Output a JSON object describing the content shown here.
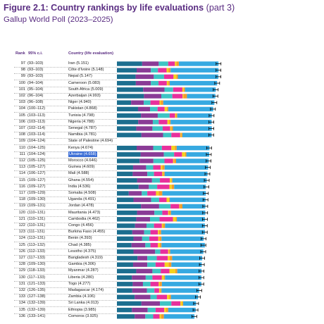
{
  "title": "Figure 2.1: Country rankings by life evaluations",
  "title_part": "(part 3)",
  "subtitle": "Gallup World Poll (2023–2025)",
  "headers": {
    "rank": "Rank",
    "ci": "95% c.i.",
    "country": "Country (life evaluation)"
  },
  "component_colors": {
    "gdp": "#1c6e8f",
    "social_support": "#8a3b96",
    "life_expectancy": "#3ec4c4",
    "freedom": "#e8309c",
    "generosity": "#f5d21c",
    "corruption": "#f39a2a",
    "dystopia_residual": "#36a9e1",
    "ci_whisker": "#000000"
  },
  "chart_data": {
    "type": "bar",
    "stacked": true,
    "orientation": "horizontal",
    "segments": [
      "gdp",
      "social_support",
      "life_expectancy",
      "freedom",
      "generosity",
      "corruption",
      "dystopia_residual"
    ],
    "rows": [
      {
        "rank": "97",
        "ci": "(93–103)",
        "country": "Iran (5.151)",
        "score": 5.151,
        "s": [
          1.28,
          0.84,
          0.48,
          0.34,
          0.08,
          0.12,
          2.01
        ]
      },
      {
        "rank": "98",
        "ci": "(93–103)",
        "country": "Côte d'Ivoire (5.148)",
        "score": 5.148,
        "s": [
          1.0,
          0.72,
          0.36,
          0.44,
          0.09,
          0.11,
          2.43
        ]
      },
      {
        "rank": "99",
        "ci": "(93–103)",
        "country": "Nepal (5.147)",
        "score": 5.147,
        "s": [
          0.95,
          0.92,
          0.52,
          0.48,
          0.14,
          0.08,
          2.05
        ]
      },
      {
        "rank": "100",
        "ci": "(94–104)",
        "country": "Cameroon (5.083)",
        "score": 5.083,
        "s": [
          0.96,
          0.76,
          0.39,
          0.42,
          0.08,
          0.07,
          2.4
        ]
      },
      {
        "rank": "101",
        "ci": "(95–104)",
        "country": "South Africa (5.009)",
        "score": 5.009,
        "s": [
          1.33,
          1.08,
          0.44,
          0.47,
          0.07,
          0.06,
          1.56
        ]
      },
      {
        "rank": "102",
        "ci": "(96–104)",
        "country": "Azerbaijan (4.993)",
        "score": 4.993,
        "s": [
          1.37,
          0.88,
          0.56,
          0.52,
          0.04,
          0.18,
          1.44
        ]
      },
      {
        "rank": "103",
        "ci": "(96–108)",
        "country": "Niger (4.940)",
        "score": 4.94,
        "s": [
          0.72,
          0.64,
          0.34,
          0.46,
          0.07,
          0.12,
          2.59
        ]
      },
      {
        "rank": "104",
        "ci": "(100–112)",
        "country": "Pakistan (4.868)",
        "score": 4.868,
        "s": [
          1.07,
          0.61,
          0.38,
          0.36,
          0.11,
          0.07,
          2.28
        ]
      },
      {
        "rank": "105",
        "ci": "(103–113)",
        "country": "Tunisia (4.798)",
        "score": 4.798,
        "s": [
          1.22,
          0.85,
          0.6,
          0.28,
          0.05,
          0.06,
          1.75
        ]
      },
      {
        "rank": "106",
        "ci": "(103–113)",
        "country": "Nigeria (4.788)",
        "score": 4.788,
        "s": [
          1.08,
          0.74,
          0.3,
          0.44,
          0.1,
          0.06,
          2.08
        ]
      },
      {
        "rank": "107",
        "ci": "(102–114)",
        "country": "Senegal (4.787)",
        "score": 4.787,
        "s": [
          0.98,
          0.82,
          0.52,
          0.38,
          0.06,
          0.08,
          1.97
        ]
      },
      {
        "rank": "108",
        "ci": "(103–114)",
        "country": "Namibia (4.781)",
        "score": 4.781,
        "s": [
          1.24,
          1.1,
          0.42,
          0.45,
          0.05,
          0.06,
          1.48
        ]
      },
      {
        "rank": "109",
        "ci": "(104–124)",
        "country": "State of Palestine (4.694)",
        "score": 4.694,
        "s": [],
        "no_bar": true
      },
      {
        "rank": "110",
        "ci": "(104–125)",
        "country": "Kenya (4.674)",
        "score": 4.674,
        "s": [
          1.0,
          0.84,
          0.44,
          0.48,
          0.18,
          0.09,
          1.66
        ]
      },
      {
        "rank": "111",
        "ci": "(104–124)",
        "country": "Ukraine (4.658)",
        "score": 4.658,
        "s": [
          1.2,
          1.18,
          0.52,
          0.4,
          0.16,
          0.06,
          1.16
        ],
        "highlight": true
      },
      {
        "rank": "112",
        "ci": "(105–125)",
        "country": "Morocco (4.646)",
        "score": 4.646,
        "s": [
          1.15,
          0.7,
          0.56,
          0.44,
          0.05,
          0.1,
          1.65
        ]
      },
      {
        "rank": "113",
        "ci": "(105–127)",
        "country": "Guinea (4.609)",
        "score": 4.609,
        "s": [
          0.82,
          0.66,
          0.36,
          0.38,
          0.08,
          0.12,
          2.2
        ]
      },
      {
        "rank": "114",
        "ci": "(106–127)",
        "country": "Mali (4.588)",
        "score": 4.588,
        "s": [
          0.8,
          0.74,
          0.34,
          0.42,
          0.06,
          0.06,
          2.17
        ]
      },
      {
        "rank": "115",
        "ci": "(109–127)",
        "country": "Ghana (4.554)",
        "score": 4.554,
        "s": [
          1.02,
          0.76,
          0.4,
          0.5,
          0.08,
          0.05,
          1.74
        ]
      },
      {
        "rank": "116",
        "ci": "(109–127)",
        "country": "India (4.536)",
        "score": 4.536,
        "s": [
          1.1,
          0.52,
          0.42,
          0.62,
          0.12,
          0.12,
          1.61
        ]
      },
      {
        "rank": "117",
        "ci": "(109–129)",
        "country": "Somalia (4.508)",
        "score": 4.508,
        "s": [
          0.6,
          0.66,
          0.28,
          0.44,
          0.14,
          0.18,
          2.21
        ]
      },
      {
        "rank": "118",
        "ci": "(109–130)",
        "country": "Uganda (4.491)",
        "score": 4.491,
        "s": [
          0.84,
          0.9,
          0.4,
          0.38,
          0.12,
          0.04,
          1.81
        ]
      },
      {
        "rank": "119",
        "ci": "(109–131)",
        "country": "Jordan (4.478)",
        "score": 4.478,
        "s": [
          1.22,
          0.92,
          0.58,
          0.44,
          0.04,
          0.12,
          1.16
        ]
      },
      {
        "rank": "120",
        "ci": "(110–131)",
        "country": "Mauritania (4.473)",
        "score": 4.473,
        "s": [
          1.02,
          0.88,
          0.4,
          0.3,
          0.04,
          0.1,
          1.74
        ]
      },
      {
        "rank": "121",
        "ci": "(110–131)",
        "country": "Cambodia (4.462)",
        "score": 4.462,
        "s": [
          0.98,
          0.7,
          0.48,
          0.68,
          0.14,
          0.06,
          1.42
        ]
      },
      {
        "rank": "122",
        "ci": "(110–131)",
        "country": "Congo (4.456)",
        "score": 4.456,
        "s": [
          0.92,
          0.58,
          0.38,
          0.4,
          0.06,
          0.1,
          2.02
        ]
      },
      {
        "rank": "123",
        "ci": "(111–131)",
        "country": "Burkina Faso (4.455)",
        "score": 4.455,
        "s": [
          0.78,
          0.6,
          0.32,
          0.38,
          0.06,
          0.1,
          2.22
        ]
      },
      {
        "rank": "124",
        "ci": "(113–131)",
        "country": "Benin (4.393)",
        "score": 4.393,
        "s": [
          0.84,
          0.44,
          0.36,
          0.46,
          0.06,
          0.1,
          2.13
        ]
      },
      {
        "rank": "125",
        "ci": "(113–132)",
        "country": "Chad (4.385)",
        "score": 4.385,
        "s": [
          0.74,
          0.7,
          0.26,
          0.38,
          0.1,
          0.08,
          2.2
        ]
      },
      {
        "rank": "126",
        "ci": "(112–133)",
        "country": "Lesotho (4.375)",
        "score": 4.375,
        "s": [
          0.84,
          1.1,
          0.26,
          0.4,
          0.04,
          0.06,
          1.68
        ]
      },
      {
        "rank": "127",
        "ci": "(117–133)",
        "country": "Bangladesh (4.319)",
        "score": 4.319,
        "s": [
          1.04,
          0.5,
          0.48,
          0.56,
          0.1,
          0.12,
          1.52
        ]
      },
      {
        "rank": "128",
        "ci": "(109–130)",
        "country": "Gambia (4.306)",
        "score": 4.306,
        "s": [
          0.82,
          0.72,
          0.42,
          0.46,
          0.2,
          0.14,
          1.54
        ]
      },
      {
        "rank": "129",
        "ci": "(118–133)",
        "country": "Myanmar (4.287)",
        "score": 4.287,
        "s": [
          0.98,
          0.82,
          0.42,
          0.44,
          0.3,
          0.1,
          1.23
        ]
      },
      {
        "rank": "130",
        "ci": "(117–133)",
        "country": "Liberia (4.280)",
        "score": 4.28,
        "s": [
          0.76,
          0.7,
          0.34,
          0.48,
          0.1,
          0.06,
          1.84
        ]
      },
      {
        "rank": "131",
        "ci": "(121–133)",
        "country": "Togo (4.277)",
        "score": 4.277,
        "s": [
          0.8,
          0.52,
          0.38,
          0.42,
          0.06,
          0.1,
          2.0
        ]
      },
      {
        "rank": "132",
        "ci": "(126–135)",
        "country": "Madagascar (4.174)",
        "score": 4.174,
        "s": [
          0.78,
          0.74,
          0.38,
          0.24,
          0.06,
          0.06,
          1.91
        ]
      },
      {
        "rank": "133",
        "ci": "(127–138)",
        "country": "Zambia (4.106)",
        "score": 4.106,
        "s": [
          0.9,
          0.8,
          0.32,
          0.52,
          0.12,
          0.08,
          1.37
        ]
      },
      {
        "rank": "134",
        "ci": "(132–139)",
        "country": "Sri Lanka (4.013)",
        "score": 4.013,
        "s": [
          1.24,
          0.94,
          0.58,
          0.46,
          0.1,
          0.04,
          0.65
        ]
      },
      {
        "rank": "135",
        "ci": "(132–139)",
        "country": "Ethiopia (3.985)",
        "score": 3.985,
        "s": [
          0.76,
          0.8,
          0.4,
          0.44,
          0.1,
          0.1,
          1.39
        ]
      },
      {
        "rank": "136",
        "ci": "(133–141)",
        "country": "Comoros (3.925)",
        "score": 3.925,
        "s": [
          0.9,
          0.54,
          0.4,
          0.32,
          0.08,
          0.14,
          1.55
        ]
      }
    ]
  }
}
